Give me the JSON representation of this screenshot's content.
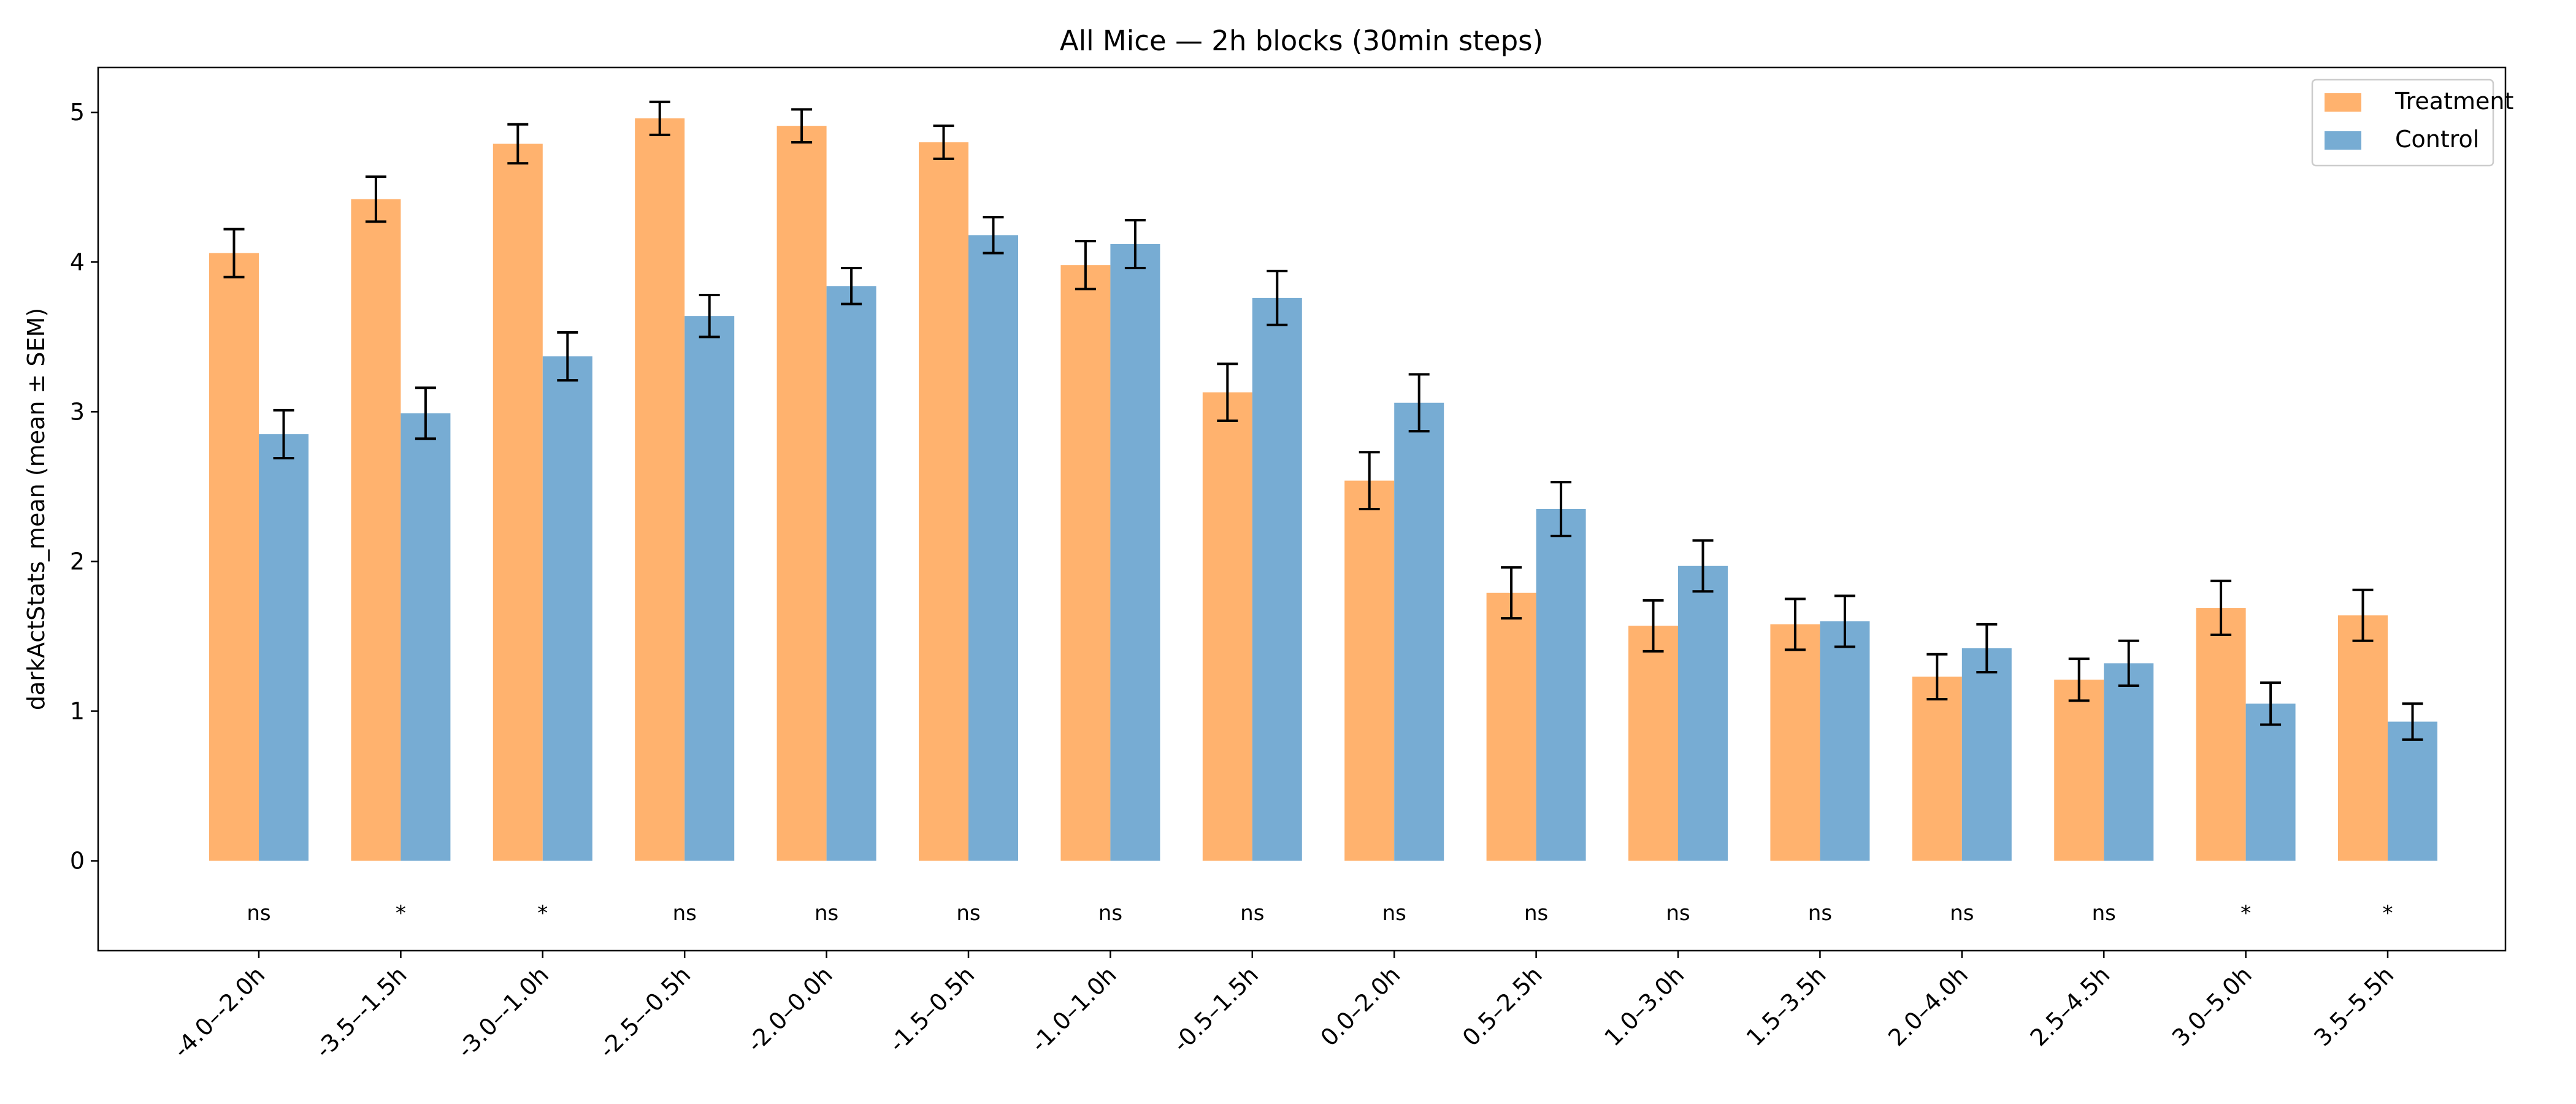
{
  "chart_data": {
    "type": "bar",
    "title": "All Mice — 2h blocks (30min steps)",
    "xlabel": "",
    "ylabel": "darkActStats_mean (mean ± SEM)",
    "ylim": [
      -0.6,
      5.3
    ],
    "yticks": [
      0,
      1,
      2,
      3,
      4,
      5
    ],
    "grid": false,
    "legend_position": "top-right",
    "categories": [
      "-4.0–-2.0h",
      "-3.5–-1.5h",
      "-3.0–-1.0h",
      "-2.5–-0.5h",
      "-2.0–0.0h",
      "-1.5–0.5h",
      "-1.0–1.0h",
      "-0.5–1.5h",
      "0.0–2.0h",
      "0.5–2.5h",
      "1.0–3.0h",
      "1.5–3.5h",
      "2.0–4.0h",
      "2.5–4.5h",
      "3.0–5.0h",
      "3.5–5.5h"
    ],
    "series": [
      {
        "name": "Treatment",
        "color": "#FFB26E",
        "values": [
          4.06,
          4.42,
          4.79,
          4.96,
          4.91,
          4.8,
          3.98,
          3.13,
          2.54,
          1.79,
          1.57,
          1.58,
          1.23,
          1.21,
          1.69,
          1.64
        ],
        "errors": [
          0.16,
          0.15,
          0.13,
          0.11,
          0.11,
          0.11,
          0.16,
          0.19,
          0.19,
          0.17,
          0.17,
          0.17,
          0.15,
          0.14,
          0.18,
          0.17
        ]
      },
      {
        "name": "Control",
        "color": "#77ACD3",
        "values": [
          2.85,
          2.99,
          3.37,
          3.64,
          3.84,
          4.18,
          4.12,
          3.76,
          3.06,
          2.35,
          1.97,
          1.6,
          1.42,
          1.32,
          1.05,
          0.93
        ],
        "errors": [
          0.16,
          0.17,
          0.16,
          0.14,
          0.12,
          0.12,
          0.16,
          0.18,
          0.19,
          0.18,
          0.17,
          0.17,
          0.16,
          0.15,
          0.14,
          0.12
        ]
      }
    ],
    "annotations": [
      "ns",
      "*",
      "*",
      "ns",
      "ns",
      "ns",
      "ns",
      "ns",
      "ns",
      "ns",
      "ns",
      "ns",
      "ns",
      "ns",
      "*",
      "*"
    ]
  }
}
